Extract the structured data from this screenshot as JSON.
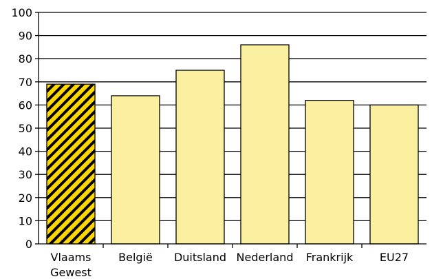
{
  "chart_data": {
    "type": "bar",
    "title": "",
    "xlabel": "",
    "ylabel": "",
    "ylim": [
      0,
      100
    ],
    "yticks": [
      0,
      10,
      20,
      30,
      40,
      50,
      60,
      70,
      80,
      90,
      100
    ],
    "grid": true,
    "categories": [
      {
        "lines": [
          "Vlaams",
          "Gewest"
        ],
        "value": 69,
        "highlight": true
      },
      {
        "lines": [
          "België"
        ],
        "value": 64,
        "highlight": false
      },
      {
        "lines": [
          "Duitsland"
        ],
        "value": 75,
        "highlight": false
      },
      {
        "lines": [
          "Nederland"
        ],
        "value": 86,
        "highlight": false
      },
      {
        "lines": [
          "Frankrijk"
        ],
        "value": 62,
        "highlight": false
      },
      {
        "lines": [
          "EU27"
        ],
        "value": 60,
        "highlight": false
      }
    ],
    "colors": {
      "bar_fill": "#faf0a0",
      "highlight_fill": "#ffd700",
      "highlight_hatch": "#000000",
      "outline": "#000000",
      "grid": "#000000"
    }
  }
}
